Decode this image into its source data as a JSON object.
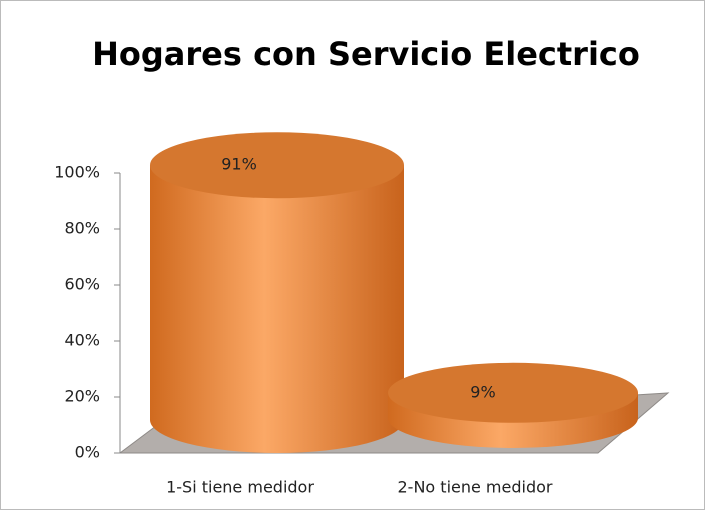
{
  "chart_data": {
    "type": "bar",
    "title": "Hogares con Servicio Electrico",
    "categories": [
      "1-Si tiene medidor",
      "2-No tiene medidor"
    ],
    "values": [
      91,
      9
    ],
    "value_labels": [
      "91%",
      "9%"
    ],
    "color": "#f29a4e",
    "ylim": [
      0,
      100
    ],
    "yticks": [
      {
        "value": 0,
        "label": "0%"
      },
      {
        "value": 20,
        "label": "20%"
      },
      {
        "value": 40,
        "label": "40%"
      },
      {
        "value": 60,
        "label": "60%"
      },
      {
        "value": 80,
        "label": "80%"
      },
      {
        "value": 100,
        "label": "100%"
      }
    ],
    "grid": false
  }
}
